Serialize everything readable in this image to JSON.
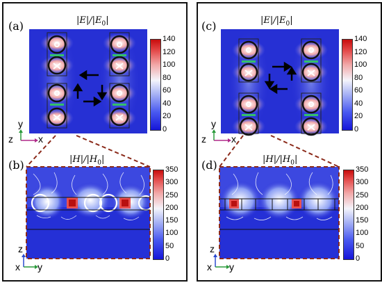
{
  "panels": {
    "a": {
      "label": "(a)",
      "title": "|E|/|E0|"
    },
    "b": {
      "label": "(b)",
      "title": "|H|/|H0|"
    },
    "c": {
      "label": "(c)",
      "title": "|E|/|E0|"
    },
    "d": {
      "label": "(d)",
      "title": "|H|/|H0|"
    }
  },
  "colorbar_e": {
    "ticks": [
      "140",
      "120",
      "100",
      "80",
      "60",
      "40",
      "20",
      "0"
    ]
  },
  "colorbar_h": {
    "ticks": [
      "350",
      "300",
      "250",
      "200",
      "150",
      "100",
      "50",
      "0"
    ]
  },
  "axes_top": {
    "y": "y",
    "z": "z",
    "x": "x"
  },
  "axes_bottom": {
    "z": "z",
    "x": "x",
    "y": "y"
  },
  "colors": {
    "accent_dash": "#8b2a1a",
    "axis_x": "#b02a8a",
    "axis_y": "#2a9a3a",
    "axis_z": "#2a4ad0"
  }
}
